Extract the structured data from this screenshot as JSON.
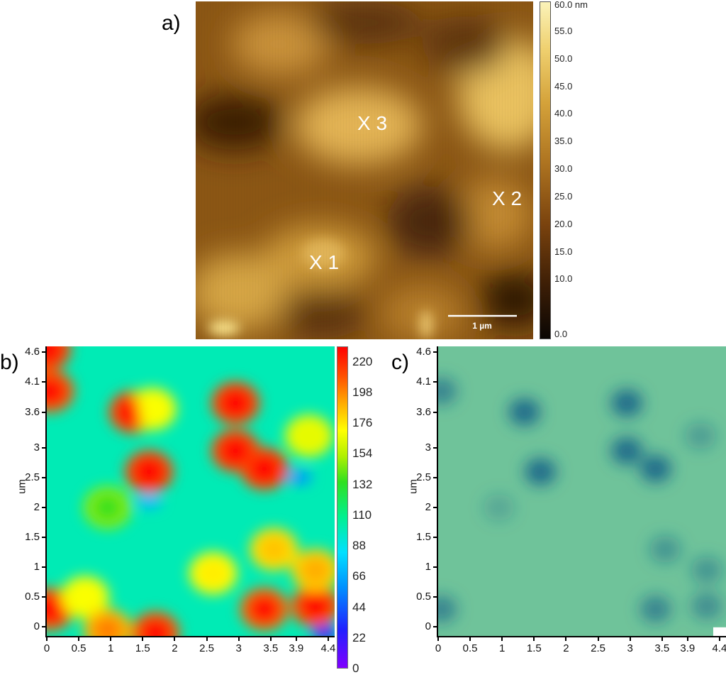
{
  "panels": {
    "a": {
      "label": "a)"
    },
    "b": {
      "label": "b)"
    },
    "c": {
      "label": "c)"
    }
  },
  "afm": {
    "markers": [
      "X 3",
      "X 2",
      "X 1"
    ],
    "scale_bar_label": "1 µm",
    "colorbar_ticks": [
      "60.0 nm",
      "55.0",
      "50.0",
      "45.0",
      "40.0",
      "35.0",
      "30.0",
      "25.0",
      "20.0",
      "15.0",
      "10.0",
      "0.0"
    ],
    "colorbar_range_nm": [
      0,
      60
    ]
  },
  "chart_data": [
    {
      "type": "heatmap",
      "title": "",
      "xlabel": "",
      "ylabel": "um",
      "x_ticks": [
        "0",
        "0.5",
        "1",
        "1.5",
        "2",
        "2.5",
        "3",
        "3.5",
        "3.9",
        "4.4"
      ],
      "y_ticks": [
        "0",
        "0.5",
        "1",
        "1.5",
        "2",
        "2.5",
        "3",
        "3.6",
        "4.1",
        "4.6"
      ],
      "xlim": [
        0,
        4.5
      ],
      "ylim": [
        -0.15,
        4.7
      ],
      "colorbar_ticks": [
        "220",
        "198",
        "176",
        "154",
        "132",
        "110",
        "88",
        "66",
        "44",
        "22",
        "0"
      ],
      "colorbar_range": [
        0,
        231
      ],
      "colormap": "rainbow",
      "background_level": 100,
      "hotspots": [
        {
          "x": 0.0,
          "y": 4.65,
          "value": 240
        },
        {
          "x": 0.05,
          "y": 3.95,
          "value": 235
        },
        {
          "x": 1.35,
          "y": 3.6,
          "value": 240
        },
        {
          "x": 1.65,
          "y": 3.65,
          "value": 170
        },
        {
          "x": 1.6,
          "y": 2.6,
          "value": 240
        },
        {
          "x": 2.95,
          "y": 3.75,
          "value": 240
        },
        {
          "x": 2.95,
          "y": 2.95,
          "value": 240
        },
        {
          "x": 3.4,
          "y": 2.65,
          "value": 240
        },
        {
          "x": 4.1,
          "y": 3.2,
          "value": 165
        },
        {
          "x": 0.95,
          "y": 2.0,
          "value": 135
        },
        {
          "x": 3.55,
          "y": 1.3,
          "value": 185
        },
        {
          "x": 0.05,
          "y": 0.3,
          "value": 235
        },
        {
          "x": 0.6,
          "y": 0.5,
          "value": 170
        },
        {
          "x": 2.6,
          "y": 0.9,
          "value": 175
        },
        {
          "x": 3.4,
          "y": 0.3,
          "value": 230
        },
        {
          "x": 4.2,
          "y": 0.35,
          "value": 235
        },
        {
          "x": 4.2,
          "y": 0.95,
          "value": 190
        },
        {
          "x": 1.7,
          "y": -0.1,
          "value": 235
        },
        {
          "x": 0.95,
          "y": -0.05,
          "value": 200
        }
      ],
      "coldspots": [
        {
          "x": 4.35,
          "y": -0.1,
          "value": 20
        },
        {
          "x": 3.95,
          "y": 2.5,
          "value": 60
        },
        {
          "x": 1.6,
          "y": 2.1,
          "value": 70
        }
      ]
    },
    {
      "type": "heatmap",
      "title": "",
      "xlabel": "",
      "ylabel": "um",
      "x_ticks": [
        "0",
        "0.5",
        "1",
        "1.5",
        "2",
        "2.5",
        "3",
        "3.5",
        "3.9",
        "4.4"
      ],
      "y_ticks": [
        "0",
        "0.5",
        "1",
        "1.5",
        "2",
        "2.5",
        "3",
        "3.6",
        "4.1",
        "4.6"
      ],
      "xlim": [
        0,
        4.5
      ],
      "ylim": [
        -0.15,
        4.7
      ],
      "colormap": "teal-green",
      "base_color": "#6fc39a",
      "spot_color": "#1c6a8a",
      "spots": [
        {
          "x": 0.05,
          "y": 3.95,
          "strength": 0.7
        },
        {
          "x": 1.35,
          "y": 3.6,
          "strength": 1.0
        },
        {
          "x": 1.6,
          "y": 2.6,
          "strength": 1.0
        },
        {
          "x": 2.95,
          "y": 3.75,
          "strength": 1.0
        },
        {
          "x": 2.95,
          "y": 2.95,
          "strength": 1.0
        },
        {
          "x": 3.4,
          "y": 2.65,
          "strength": 1.0
        },
        {
          "x": 4.1,
          "y": 3.2,
          "strength": 0.4
        },
        {
          "x": 0.95,
          "y": 2.0,
          "strength": 0.3
        },
        {
          "x": 3.55,
          "y": 1.3,
          "strength": 0.5
        },
        {
          "x": 0.05,
          "y": 0.3,
          "strength": 0.7
        },
        {
          "x": 3.4,
          "y": 0.3,
          "strength": 0.7
        },
        {
          "x": 4.2,
          "y": 0.35,
          "strength": 0.6
        },
        {
          "x": 4.2,
          "y": 0.95,
          "strength": 0.5
        }
      ],
      "blank_corner": {
        "x": 4.3,
        "y": -0.1
      }
    }
  ]
}
